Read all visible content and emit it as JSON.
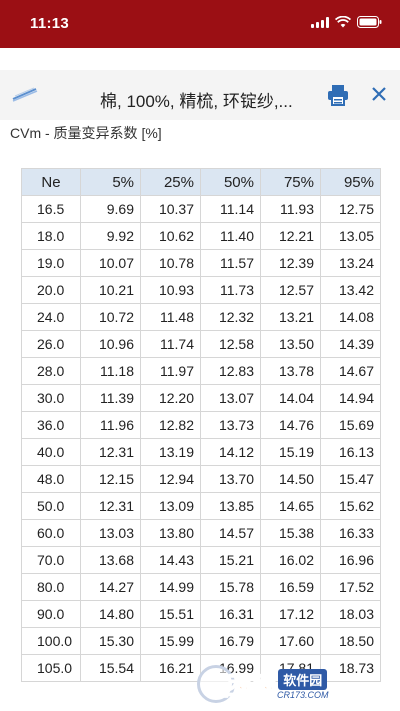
{
  "status_bar": {
    "time": "11:13"
  },
  "toolbar": {
    "title": "棉, 100%, 精梳, 环锭纱,...",
    "logo_icon": "yarn-logo-icon",
    "print_icon": "print-icon",
    "close_icon": "close-icon"
  },
  "section": {
    "heading": "CVm - 质量变异系数 [%]"
  },
  "table": {
    "headers": [
      "Ne",
      "5%",
      "25%",
      "50%",
      "75%",
      "95%"
    ],
    "rows": [
      [
        "16.5",
        "9.69",
        "10.37",
        "11.14",
        "11.93",
        "12.75"
      ],
      [
        "18.0",
        "9.92",
        "10.62",
        "11.40",
        "12.21",
        "13.05"
      ],
      [
        "19.0",
        "10.07",
        "10.78",
        "11.57",
        "12.39",
        "13.24"
      ],
      [
        "20.0",
        "10.21",
        "10.93",
        "11.73",
        "12.57",
        "13.42"
      ],
      [
        "24.0",
        "10.72",
        "11.48",
        "12.32",
        "13.21",
        "14.08"
      ],
      [
        "26.0",
        "10.96",
        "11.74",
        "12.58",
        "13.50",
        "14.39"
      ],
      [
        "28.0",
        "11.18",
        "11.97",
        "12.83",
        "13.78",
        "14.67"
      ],
      [
        "30.0",
        "11.39",
        "12.20",
        "13.07",
        "14.04",
        "14.94"
      ],
      [
        "36.0",
        "11.96",
        "12.82",
        "13.73",
        "14.76",
        "15.69"
      ],
      [
        "40.0",
        "12.31",
        "13.19",
        "14.12",
        "15.19",
        "16.13"
      ],
      [
        "48.0",
        "12.15",
        "12.94",
        "13.70",
        "14.50",
        "15.47"
      ],
      [
        "50.0",
        "12.31",
        "13.09",
        "13.85",
        "14.65",
        "15.62"
      ],
      [
        "60.0",
        "13.03",
        "13.80",
        "14.57",
        "15.38",
        "16.33"
      ],
      [
        "70.0",
        "13.68",
        "14.43",
        "15.21",
        "16.02",
        "16.96"
      ],
      [
        "80.0",
        "14.27",
        "14.99",
        "15.78",
        "16.59",
        "17.52"
      ],
      [
        "90.0",
        "14.80",
        "15.51",
        "16.31",
        "17.12",
        "18.03"
      ],
      [
        "100.0",
        "15.30",
        "15.99",
        "16.79",
        "17.60",
        "18.50"
      ],
      [
        "105.0",
        "15.54",
        "16.21",
        "16.99",
        "17.81",
        "18.73"
      ]
    ]
  },
  "watermark": {
    "main": "西西",
    "sub": "软件园",
    "url": "CR173.COM"
  },
  "colors": {
    "status_bar": "#9b0f14",
    "header_row": "#dbe6f2",
    "icon_blue": "#2f6db5",
    "border": "#d6d6d6"
  }
}
